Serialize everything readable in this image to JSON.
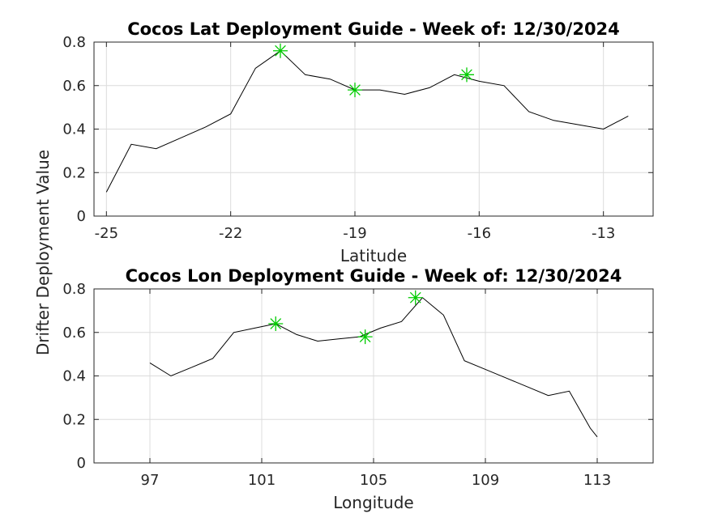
{
  "ylabel": "Drifter Deployment Value",
  "colors": {
    "line": "#000000",
    "marker": "#00cc00",
    "grid": "#dcdcdc",
    "axis": "#262626"
  },
  "chart_data": [
    {
      "type": "line",
      "title": "Cocos Lat Deployment Guide - Week of: 12/30/2024",
      "xlabel": "Latitude",
      "ylabel": "Drifter Deployment Value",
      "xlim": [
        -25.3,
        -11.8
      ],
      "ylim": [
        0,
        0.8
      ],
      "xticks": [
        -25,
        -22,
        -19,
        -16,
        -13
      ],
      "yticks": [
        0,
        0.2,
        0.4,
        0.6,
        0.8
      ],
      "grid": true,
      "series": [
        {
          "x": [
            -25.0,
            -24.4,
            -23.8,
            -23.2,
            -22.6,
            -22.0,
            -21.4,
            -20.8,
            -20.2,
            -19.6,
            -19.0,
            -18.4,
            -17.8,
            -17.2,
            -16.6,
            -16.0,
            -15.4,
            -14.8,
            -14.2,
            -13.6,
            -13.0,
            -12.4
          ],
          "y": [
            0.11,
            0.33,
            0.31,
            0.36,
            0.41,
            0.47,
            0.68,
            0.76,
            0.65,
            0.63,
            0.58,
            0.58,
            0.56,
            0.59,
            0.65,
            0.62,
            0.6,
            0.48,
            0.44,
            0.42,
            0.4,
            0.46
          ]
        }
      ],
      "markers": {
        "x": [
          -20.8,
          -19.0,
          -16.3
        ],
        "y": [
          0.76,
          0.58,
          0.65
        ]
      }
    },
    {
      "type": "line",
      "title": "Cocos Lon Deployment Guide - Week of: 12/30/2024",
      "xlabel": "Longitude",
      "ylabel": "Drifter Deployment Value",
      "xlim": [
        95,
        115
      ],
      "ylim": [
        0,
        0.8
      ],
      "xticks": [
        97,
        101,
        105,
        109,
        113
      ],
      "yticks": [
        0,
        0.2,
        0.4,
        0.6,
        0.8
      ],
      "grid": true,
      "series": [
        {
          "x": [
            97.0,
            97.75,
            98.5,
            99.25,
            100.0,
            100.75,
            101.5,
            102.25,
            103.0,
            103.75,
            104.5,
            105.25,
            106.0,
            106.75,
            107.5,
            108.25,
            109.0,
            109.75,
            110.5,
            111.25,
            112.0,
            112.75,
            113.0
          ],
          "y": [
            0.46,
            0.4,
            0.44,
            0.48,
            0.6,
            0.62,
            0.64,
            0.59,
            0.56,
            0.57,
            0.58,
            0.62,
            0.65,
            0.76,
            0.68,
            0.47,
            0.43,
            0.39,
            0.35,
            0.31,
            0.33,
            0.16,
            0.12
          ]
        }
      ],
      "markers": {
        "x": [
          101.5,
          104.7,
          106.5
        ],
        "y": [
          0.64,
          0.58,
          0.76
        ]
      }
    }
  ]
}
